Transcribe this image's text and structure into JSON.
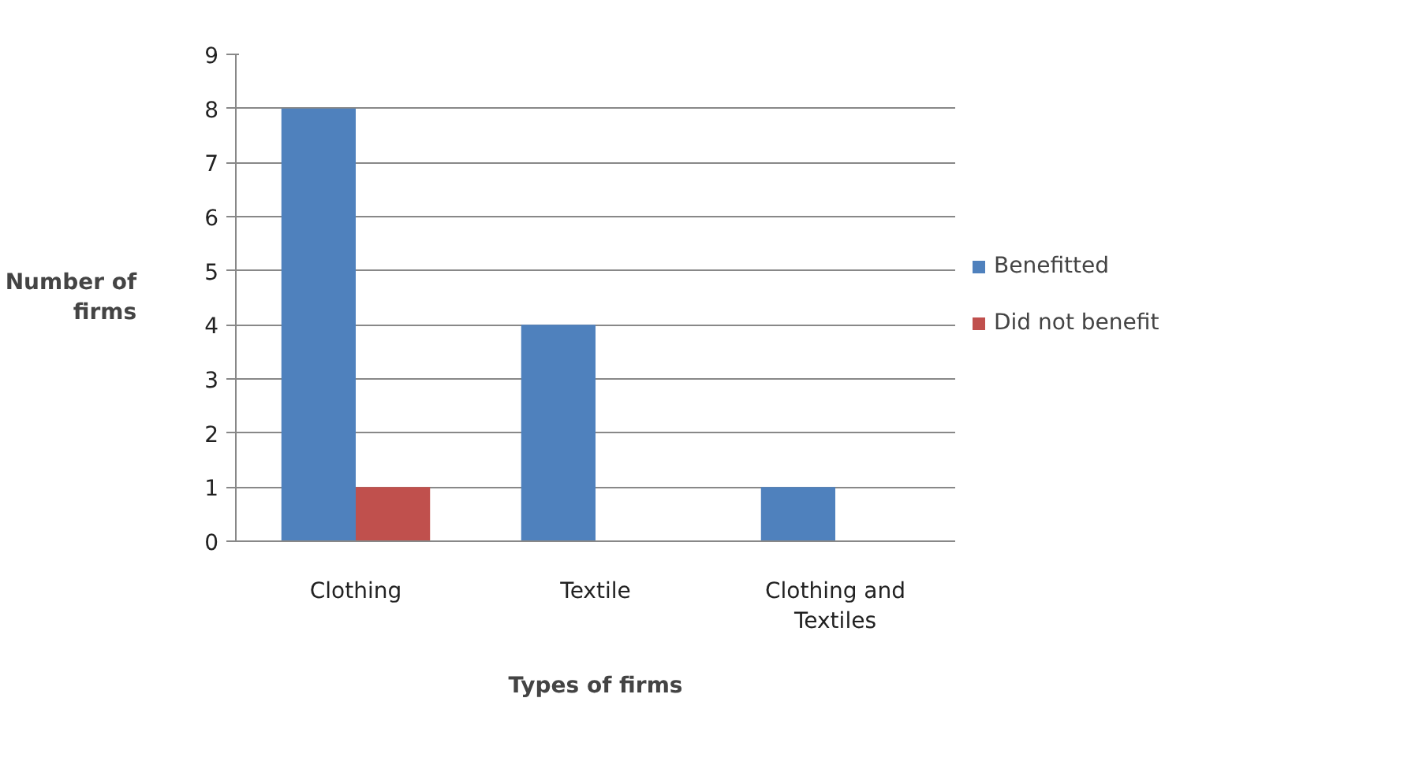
{
  "chart_data": {
    "type": "bar",
    "xlabel": "Types of firms",
    "ylabel": "Number of firms",
    "categories": [
      "Clothing",
      "Textile",
      "Clothing and Textiles"
    ],
    "series": [
      {
        "name": "Benefitted",
        "color": "#4f81bd",
        "values": [
          8,
          4,
          1
        ]
      },
      {
        "name": "Did not benefit",
        "color": "#c0504d",
        "values": [
          1,
          0,
          0
        ]
      }
    ],
    "ylim": [
      0,
      9
    ],
    "yticks": [
      0,
      1,
      2,
      3,
      4,
      5,
      6,
      7,
      8,
      9
    ],
    "grid": "y",
    "legend": "right"
  }
}
